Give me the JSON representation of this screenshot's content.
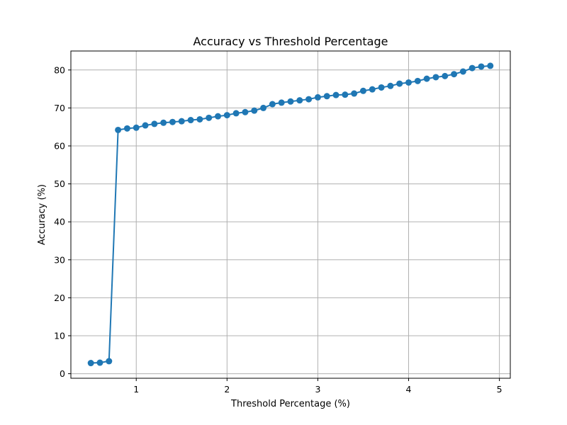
{
  "chart_data": {
    "type": "line",
    "title": "Accuracy vs Threshold Percentage",
    "xlabel": "Threshold Percentage (%)",
    "ylabel": "Accuracy (%)",
    "xlim": [
      0.28,
      5.12
    ],
    "ylim": [
      -1.2,
      85
    ],
    "xticks": [
      1,
      2,
      3,
      4,
      5
    ],
    "yticks": [
      0,
      10,
      20,
      30,
      40,
      50,
      60,
      70,
      80
    ],
    "grid": true,
    "color": "#1f77b4",
    "x": [
      0.5,
      0.6,
      0.7,
      0.8,
      0.9,
      1.0,
      1.1,
      1.2,
      1.3,
      1.4,
      1.5,
      1.6,
      1.7,
      1.8,
      1.9,
      2.0,
      2.1,
      2.2,
      2.3,
      2.4,
      2.5,
      2.6,
      2.7,
      2.8,
      2.9,
      3.0,
      3.1,
      3.2,
      3.3,
      3.4,
      3.5,
      3.6,
      3.7,
      3.8,
      3.9,
      4.0,
      4.1,
      4.2,
      4.3,
      4.4,
      4.5,
      4.6,
      4.7,
      4.8,
      4.9
    ],
    "y": [
      2.8,
      2.9,
      3.3,
      64.2,
      64.6,
      64.8,
      65.4,
      65.8,
      66.1,
      66.3,
      66.5,
      66.8,
      67.0,
      67.4,
      67.8,
      68.1,
      68.6,
      68.9,
      69.3,
      70.0,
      71.0,
      71.4,
      71.7,
      72.0,
      72.3,
      72.8,
      73.1,
      73.4,
      73.5,
      73.8,
      74.5,
      74.9,
      75.4,
      75.8,
      76.4,
      76.7,
      77.1,
      77.7,
      78.1,
      78.4,
      78.9,
      79.6,
      80.5,
      80.9,
      81.1
    ]
  }
}
